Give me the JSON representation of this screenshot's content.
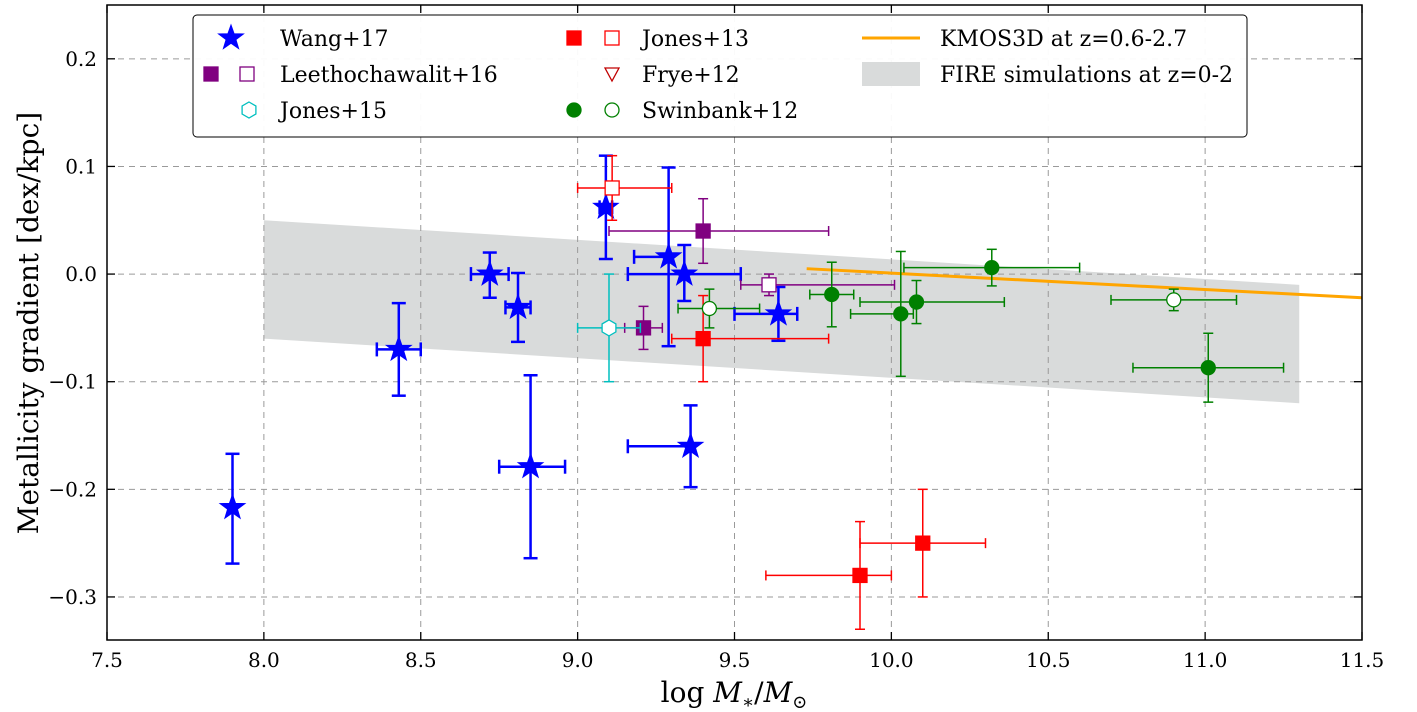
{
  "chart_data": {
    "type": "scatter",
    "xlabel": "log M*/M⊙",
    "ylabel": "Metallicity gradient [dex/kpc]",
    "xlim": [
      7.5,
      11.5
    ],
    "ylim": [
      -0.34,
      0.25
    ],
    "xticks": [
      7.5,
      8.0,
      8.5,
      9.0,
      9.5,
      10.0,
      10.5,
      11.0,
      11.5
    ],
    "yticks": [
      -0.3,
      -0.2,
      -0.1,
      0.0,
      0.1,
      0.2
    ],
    "xtick_labels": [
      "7.5",
      "8.0",
      "8.5",
      "9.0",
      "9.5",
      "10.0",
      "10.5",
      "11.0",
      "11.5"
    ],
    "ytick_labels": [
      "−0.3",
      "−0.2",
      "−0.1",
      "0.0",
      "0.1",
      "0.2"
    ],
    "grid": true,
    "legend_position": "top",
    "legend": [
      {
        "label": "Wang+17",
        "marker": "star"
      },
      {
        "label": "Leethochawalit+16",
        "marker": "square-pair"
      },
      {
        "label": "Jones+15",
        "marker": "hexagon-open"
      },
      {
        "label": "Jones+13",
        "marker": "square-pair"
      },
      {
        "label": "Frye+12",
        "marker": "triangle-down-open"
      },
      {
        "label": "Swinbank+12",
        "marker": "circle-pair"
      },
      {
        "label": "KMOS3D at z=0.6-2.7",
        "marker": "line"
      },
      {
        "label": "FIRE simulations at z=0-2",
        "marker": "band"
      }
    ],
    "series": [
      {
        "name": "Wang+17",
        "color": "#0000ff",
        "marker": "star",
        "points": [
          {
            "x": 7.9,
            "y": -0.217,
            "xerr": [
              0,
              0
            ],
            "yerr": [
              0.052,
              0.05
            ]
          },
          {
            "x": 8.43,
            "y": -0.07,
            "xerr": [
              0.07,
              0.07
            ],
            "yerr": [
              0.043,
              0.043
            ]
          },
          {
            "x": 8.72,
            "y": 0.0,
            "xerr": [
              0.06,
              0.06
            ],
            "yerr": [
              0.022,
              0.02
            ]
          },
          {
            "x": 8.81,
            "y": -0.031,
            "xerr": [
              0.04,
              0.04
            ],
            "yerr": [
              0.032,
              0.032
            ]
          },
          {
            "x": 8.85,
            "y": -0.179,
            "xerr": [
              0.1,
              0.11
            ],
            "yerr": [
              0.085,
              0.085
            ]
          },
          {
            "x": 9.09,
            "y": 0.062,
            "xerr": [
              0.02,
              0.02
            ],
            "yerr": [
              0.048,
              0.048
            ]
          },
          {
            "x": 9.29,
            "y": 0.016,
            "xerr": [
              0.11,
              0.0
            ],
            "yerr": [
              0.083,
              0.083
            ]
          },
          {
            "x": 9.34,
            "y": 0.0,
            "xerr": [
              0.18,
              0.18
            ],
            "yerr": [
              0.025,
              0.027
            ]
          },
          {
            "x": 9.36,
            "y": -0.16,
            "xerr": [
              0.2,
              0.0
            ],
            "yerr": [
              0.038,
              0.038
            ]
          },
          {
            "x": 9.64,
            "y": -0.037,
            "xerr": [
              0.14,
              0.06
            ],
            "yerr": [
              0.025,
              0.025
            ]
          }
        ]
      },
      {
        "name": "Leethochawalit+16",
        "color": "#800080",
        "points": [
          {
            "x": 9.21,
            "y": -0.05,
            "filled": true,
            "xerr": [
              0.06,
              0.06
            ],
            "yerr": [
              0.02,
              0.02
            ]
          },
          {
            "x": 9.4,
            "y": 0.04,
            "filled": true,
            "xerr": [
              0.3,
              0.4
            ],
            "yerr": [
              0.03,
              0.03
            ]
          },
          {
            "x": 9.61,
            "y": -0.01,
            "filled": false,
            "xerr": [
              0.09,
              0.4
            ],
            "yerr": [
              0.01,
              0.01
            ]
          }
        ]
      },
      {
        "name": "Jones+15",
        "color": "#00bfbf",
        "points": [
          {
            "x": 9.1,
            "y": -0.05,
            "filled": false,
            "xerr": [
              0.1,
              0.1
            ],
            "yerr": [
              0.05,
              0.05
            ]
          }
        ]
      },
      {
        "name": "Jones+13",
        "color": "#ff0000",
        "points": [
          {
            "x": 9.4,
            "y": -0.06,
            "filled": true,
            "xerr": [
              0.1,
              0.4
            ],
            "yerr": [
              0.04,
              0.04
            ]
          },
          {
            "x": 9.9,
            "y": -0.28,
            "filled": true,
            "xerr": [
              0.3,
              0.1
            ],
            "yerr": [
              0.05,
              0.05
            ]
          },
          {
            "x": 10.1,
            "y": -0.25,
            "filled": true,
            "xerr": [
              0.2,
              0.2
            ],
            "yerr": [
              0.05,
              0.05
            ]
          },
          {
            "x": 9.11,
            "y": 0.08,
            "filled": false,
            "xerr": [
              0.11,
              0.19
            ],
            "yerr": [
              0.03,
              0.03
            ]
          }
        ]
      },
      {
        "name": "Swinbank+12",
        "color": "#008000",
        "points": [
          {
            "x": 9.42,
            "y": -0.032,
            "filled": false,
            "xerr": [
              0.1,
              0.16
            ],
            "yerr": [
              0.018,
              0.018
            ]
          },
          {
            "x": 9.81,
            "y": -0.019,
            "filled": true,
            "xerr": [
              0.07,
              0.07
            ],
            "yerr": [
              0.03,
              0.03
            ]
          },
          {
            "x": 10.03,
            "y": -0.037,
            "filled": true,
            "xerr": [
              0.16,
              0.04
            ],
            "yerr": [
              0.058,
              0.058
            ]
          },
          {
            "x": 10.08,
            "y": -0.026,
            "filled": true,
            "xerr": [
              0.18,
              0.28
            ],
            "yerr": [
              0.02,
              0.02
            ]
          },
          {
            "x": 10.32,
            "y": 0.006,
            "filled": true,
            "xerr": [
              0.28,
              0.28
            ],
            "yerr": [
              0.017,
              0.017
            ]
          },
          {
            "x": 10.9,
            "y": -0.024,
            "filled": false,
            "xerr": [
              0.2,
              0.2
            ],
            "yerr": [
              0.01,
              0.01
            ]
          },
          {
            "x": 11.01,
            "y": -0.087,
            "filled": true,
            "xerr": [
              0.24,
              0.24
            ],
            "yerr": [
              0.032,
              0.032
            ]
          }
        ]
      }
    ],
    "kmos3d_line": {
      "name": "KMOS3D at z=0.6-2.7",
      "color": "#ffa500",
      "x": [
        9.73,
        11.5
      ],
      "y": [
        0.005,
        -0.022
      ]
    },
    "fire_band": {
      "name": "FIRE simulations at z=0-2",
      "color": "#d9dbdb",
      "x": [
        8.0,
        11.3
      ],
      "upper": [
        0.05,
        -0.01
      ],
      "lower": [
        -0.06,
        -0.12
      ]
    }
  }
}
